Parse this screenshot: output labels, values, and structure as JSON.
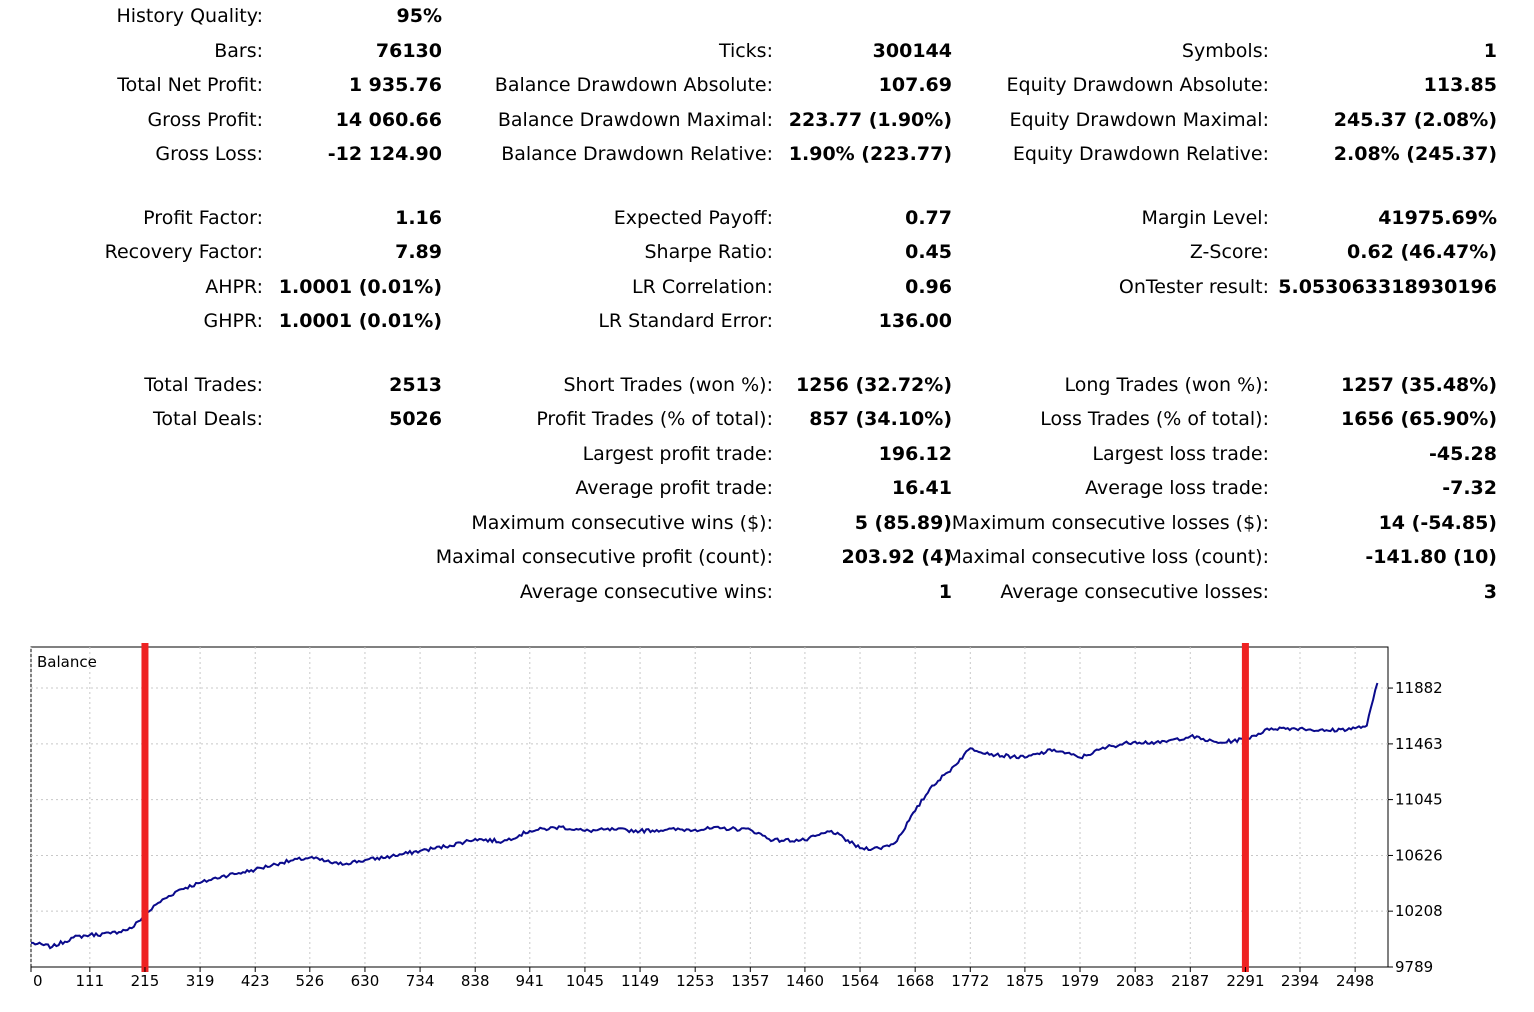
{
  "report": {
    "col1": [
      {
        "label": "History Quality:",
        "value": "95%"
      },
      {
        "label": "Bars:",
        "value": "76130"
      },
      {
        "label": "Total Net Profit:",
        "value": "1 935.76"
      },
      {
        "label": "Gross Profit:",
        "value": "14 060.66"
      },
      {
        "label": "Gross Loss:",
        "value": "-12 124.90"
      },
      {
        "label": "Profit Factor:",
        "value": "1.16"
      },
      {
        "label": "Recovery Factor:",
        "value": "7.89"
      },
      {
        "label": "AHPR:",
        "value": "1.0001 (0.01%)"
      },
      {
        "label": "GHPR:",
        "value": "1.0001 (0.01%)"
      },
      {
        "label": "Total Trades:",
        "value": "2513"
      },
      {
        "label": "Total Deals:",
        "value": "5026"
      }
    ],
    "col2": [
      {
        "label": "Ticks:",
        "value": "300144"
      },
      {
        "label": "Balance Drawdown Absolute:",
        "value": "107.69"
      },
      {
        "label": "Balance Drawdown Maximal:",
        "value": "223.77 (1.90%)"
      },
      {
        "label": "Balance Drawdown Relative:",
        "value": "1.90% (223.77)"
      },
      {
        "label": "Expected Payoff:",
        "value": "0.77"
      },
      {
        "label": "Sharpe Ratio:",
        "value": "0.45"
      },
      {
        "label": "LR Correlation:",
        "value": "0.96"
      },
      {
        "label": "LR Standard Error:",
        "value": "136.00"
      },
      {
        "label": "Short Trades (won %):",
        "value": "1256 (32.72%)"
      },
      {
        "label": "Profit Trades (% of total):",
        "value": "857 (34.10%)"
      },
      {
        "label": "Largest profit trade:",
        "value": "196.12"
      },
      {
        "label": "Average profit trade:",
        "value": "16.41"
      },
      {
        "label": "Maximum consecutive wins ($):",
        "value": "5 (85.89)"
      },
      {
        "label": "Maximal consecutive profit (count):",
        "value": "203.92 (4)"
      },
      {
        "label": "Average consecutive wins:",
        "value": "1"
      }
    ],
    "col3": [
      {
        "label": "Symbols:",
        "value": "1"
      },
      {
        "label": "Equity Drawdown Absolute:",
        "value": "113.85"
      },
      {
        "label": "Equity Drawdown Maximal:",
        "value": "245.37 (2.08%)"
      },
      {
        "label": "Equity Drawdown Relative:",
        "value": "2.08% (245.37)"
      },
      {
        "label": "Margin Level:",
        "value": "41975.69%"
      },
      {
        "label": "Z-Score:",
        "value": "0.62 (46.47%)"
      },
      {
        "label": "OnTester result:",
        "value": "5.053063318930196"
      },
      {
        "label": "Long Trades (won %):",
        "value": "1257 (35.48%)"
      },
      {
        "label": "Loss Trades (% of total):",
        "value": "1656 (65.90%)"
      },
      {
        "label": "Largest loss trade:",
        "value": "-45.28"
      },
      {
        "label": "Average loss trade:",
        "value": "-7.32"
      },
      {
        "label": "Maximum consecutive losses ($):",
        "value": "14 (-54.85)"
      },
      {
        "label": "Maximal consecutive loss (count):",
        "value": "-141.80 (10)"
      },
      {
        "label": "Average consecutive losses:",
        "value": "3"
      }
    ]
  },
  "chart": {
    "title": "Balance",
    "line_color": "#0a0a8c",
    "marker_color": "#ee2222",
    "x_ticks": [
      "0",
      "111",
      "215",
      "319",
      "423",
      "526",
      "630",
      "734",
      "838",
      "941",
      "1045",
      "1149",
      "1253",
      "1357",
      "1460",
      "1564",
      "1668",
      "1772",
      "1875",
      "1979",
      "2083",
      "2187",
      "2291",
      "2394",
      "2498"
    ],
    "y_ticks": [
      "9789",
      "10208",
      "10626",
      "11045",
      "11463",
      "11882"
    ],
    "xlim": [
      0,
      2560
    ],
    "ylim": [
      9789,
      12190
    ],
    "markers_x": [
      215,
      2291
    ],
    "chart_data": {
      "type": "line",
      "title": "Balance",
      "xlabel": "",
      "ylabel": "",
      "xlim": [
        0,
        2560
      ],
      "ylim": [
        9789,
        12190
      ],
      "grid": true,
      "x": [
        0,
        40,
        80,
        111,
        150,
        190,
        215,
        240,
        280,
        319,
        360,
        400,
        423,
        470,
        526,
        580,
        630,
        680,
        734,
        790,
        838,
        890,
        941,
        1000,
        1045,
        1100,
        1149,
        1200,
        1253,
        1300,
        1357,
        1400,
        1460,
        1510,
        1564,
        1600,
        1630,
        1668,
        1700,
        1730,
        1772,
        1820,
        1875,
        1930,
        1979,
        2030,
        2083,
        2130,
        2187,
        2240,
        2291,
        2340,
        2394,
        2440,
        2498,
        2520,
        2540
      ],
      "y": [
        9970,
        9940,
        10010,
        10030,
        10040,
        10080,
        10180,
        10270,
        10370,
        10420,
        10470,
        10500,
        10520,
        10570,
        10610,
        10560,
        10590,
        10620,
        10660,
        10700,
        10750,
        10730,
        10810,
        10840,
        10810,
        10820,
        10810,
        10820,
        10820,
        10830,
        10820,
        10740,
        10740,
        10810,
        10680,
        10680,
        10720,
        10960,
        11150,
        11250,
        11430,
        11380,
        11360,
        11420,
        11360,
        11440,
        11480,
        11470,
        11520,
        11470,
        11500,
        11580,
        11580,
        11560,
        11580,
        11600,
        11920
      ]
    }
  }
}
